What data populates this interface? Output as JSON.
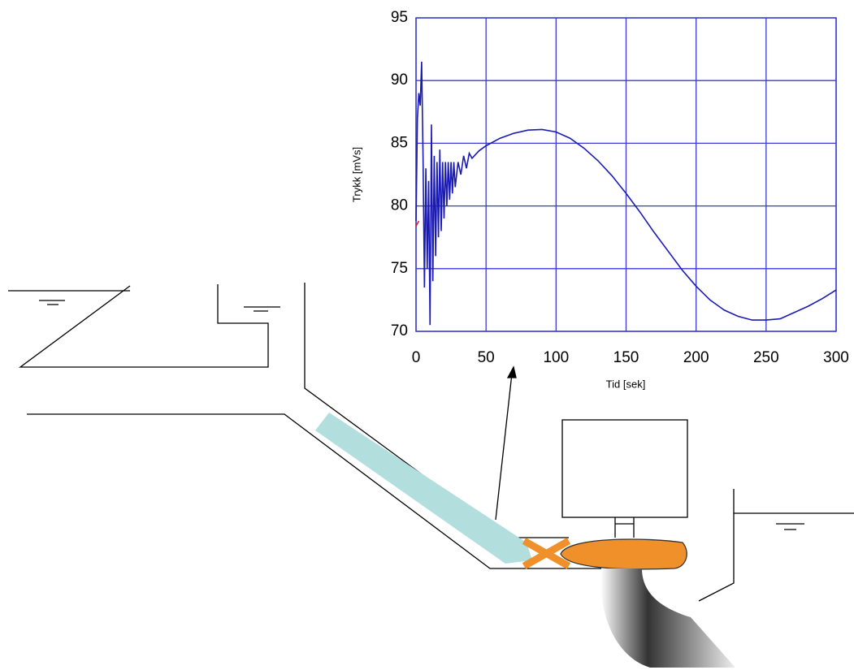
{
  "chart_data": {
    "type": "line",
    "xlabel": "Tid [sek]",
    "ylabel": "Trykk [mVs]",
    "xlim": [
      0,
      300
    ],
    "ylim": [
      70,
      95
    ],
    "xticks": [
      0,
      50,
      100,
      150,
      200,
      250,
      300
    ],
    "yticks": [
      70,
      75,
      80,
      85,
      90,
      95
    ],
    "grid": true,
    "series": [
      {
        "color": "#1a1ab4",
        "x": [
          0,
          1,
          2,
          3,
          4,
          5,
          6,
          7,
          8,
          9,
          10,
          11,
          12,
          13,
          14,
          15,
          16,
          17,
          18,
          19,
          20,
          21,
          22,
          23,
          24,
          25,
          26,
          27,
          28,
          30,
          32,
          34,
          36,
          38,
          40,
          45,
          50,
          60,
          70,
          80,
          90,
          100,
          110,
          120,
          130,
          140,
          150,
          160,
          170,
          180,
          190,
          200,
          210,
          220,
          230,
          240,
          250,
          260,
          270,
          280,
          290,
          300
        ],
        "values": [
          78.8,
          87,
          89,
          88,
          91.5,
          84,
          73.5,
          83,
          75,
          82,
          70.5,
          86.5,
          74,
          84,
          76,
          83.5,
          77.5,
          84.5,
          78,
          83.5,
          79,
          83.5,
          80,
          83.5,
          80.5,
          83.5,
          81,
          83.5,
          81.5,
          83.5,
          82.5,
          84,
          83,
          84.2,
          83.8,
          84.4,
          84.8,
          85.4,
          85.8,
          86.05,
          86.1,
          85.9,
          85.4,
          84.6,
          83.6,
          82.4,
          81,
          79.5,
          77.9,
          76.4,
          74.9,
          73.6,
          72.5,
          71.7,
          71.2,
          70.9,
          70.9,
          71,
          71.5,
          72,
          72.6,
          73.3
        ]
      },
      {
        "color": "#e02020",
        "x": [
          0,
          2
        ],
        "values": [
          78.4,
          78.8
        ]
      }
    ]
  }
}
